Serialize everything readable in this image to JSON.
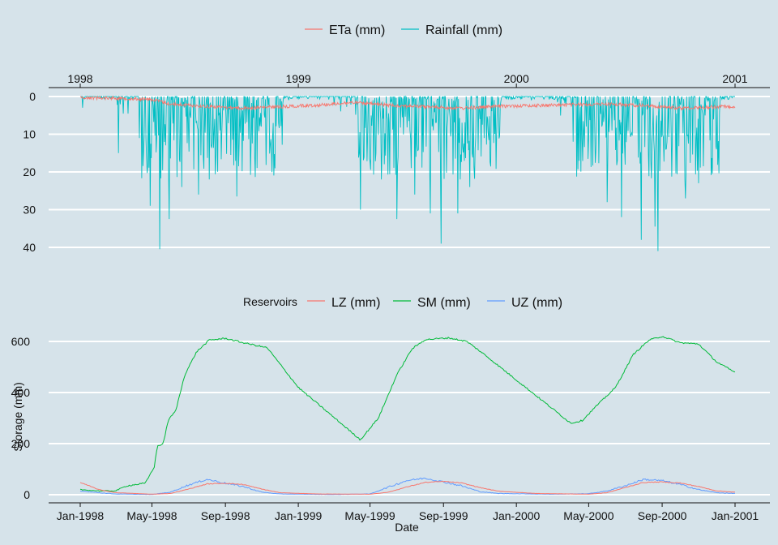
{
  "chart_data": [
    {
      "type": "line",
      "title": "",
      "legend": {
        "position": "top",
        "title": "",
        "entries": [
          {
            "name": "ETa (mm)",
            "color": "#f8766d"
          },
          {
            "name": "Rainfall (mm)",
            "color": "#00bfc4"
          }
        ]
      },
      "x_axis": {
        "position": "top",
        "tick_labels": [
          "1998",
          "1999",
          "2000",
          "2001"
        ],
        "range": [
          "1998-01-01",
          "2001-01-01"
        ]
      },
      "y_axis": {
        "reversed": true,
        "ticks": [
          0,
          10,
          20,
          30,
          40
        ],
        "ylim": [
          0,
          42
        ]
      },
      "grid": true,
      "series": [
        {
          "name": "ETa (mm)",
          "color": "#f8766d",
          "approx_envelope": [
            {
              "x": "1998-01-01",
              "y": 0.3
            },
            {
              "x": "1998-03-01",
              "y": 0.4
            },
            {
              "x": "1998-05-01",
              "y": 0.8
            },
            {
              "x": "1998-06-01",
              "y": 2.0
            },
            {
              "x": "1998-08-01",
              "y": 2.6
            },
            {
              "x": "1998-10-01",
              "y": 3.1
            },
            {
              "x": "1998-12-01",
              "y": 2.7
            },
            {
              "x": "1999-02-01",
              "y": 2.3
            },
            {
              "x": "1999-04-01",
              "y": 1.6
            },
            {
              "x": "1999-06-01",
              "y": 2.3
            },
            {
              "x": "1999-08-01",
              "y": 2.7
            },
            {
              "x": "1999-10-01",
              "y": 3.1
            },
            {
              "x": "1999-12-01",
              "y": 2.6
            },
            {
              "x": "2000-03-01",
              "y": 2.3
            },
            {
              "x": "2000-06-01",
              "y": 2.0
            },
            {
              "x": "2000-08-01",
              "y": 2.4
            },
            {
              "x": "2000-10-01",
              "y": 3.1
            },
            {
              "x": "2000-12-31",
              "y": 2.6
            }
          ]
        },
        {
          "name": "Rainfall (mm)",
          "color": "#00bfc4",
          "notable_events": [
            {
              "x": "1998-01-05",
              "y": 3
            },
            {
              "x": "1998-03-06",
              "y": 15
            },
            {
              "x": "1998-04-10",
              "y": 11
            },
            {
              "x": "1998-04-28",
              "y": 29
            },
            {
              "x": "1998-05-14",
              "y": 40.5
            },
            {
              "x": "1998-05-30",
              "y": 32.5
            },
            {
              "x": "1998-06-20",
              "y": 24
            },
            {
              "x": "1998-07-18",
              "y": 26
            },
            {
              "x": "1998-08-05",
              "y": 22
            },
            {
              "x": "1998-09-20",
              "y": 26.5
            },
            {
              "x": "1998-10-20",
              "y": 16
            },
            {
              "x": "1998-11-20",
              "y": 7
            },
            {
              "x": "1999-04-15",
              "y": 30
            },
            {
              "x": "1999-05-20",
              "y": 22
            },
            {
              "x": "1999-06-15",
              "y": 32.5
            },
            {
              "x": "1999-07-15",
              "y": 26
            },
            {
              "x": "1999-08-10",
              "y": 31
            },
            {
              "x": "1999-08-28",
              "y": 39
            },
            {
              "x": "1999-09-25",
              "y": 31
            },
            {
              "x": "1999-10-15",
              "y": 24
            },
            {
              "x": "1999-11-15",
              "y": 10
            },
            {
              "x": "2000-04-05",
              "y": 12
            },
            {
              "x": "2000-06-01",
              "y": 28
            },
            {
              "x": "2000-06-25",
              "y": 32
            },
            {
              "x": "2000-07-28",
              "y": 38
            },
            {
              "x": "2000-08-20",
              "y": 34.5
            },
            {
              "x": "2000-08-25",
              "y": 41
            },
            {
              "x": "2000-10-10",
              "y": 27
            },
            {
              "x": "2000-11-01",
              "y": 23
            },
            {
              "x": "2000-12-01",
              "y": 14
            }
          ]
        }
      ]
    },
    {
      "type": "line",
      "title": "",
      "xlabel": "Date",
      "ylabel": "Storage (mm)",
      "legend": {
        "position": "top",
        "title": "Reservoirs",
        "entries": [
          {
            "name": "LZ (mm)",
            "color": "#f8766d"
          },
          {
            "name": "SM (mm)",
            "color": "#00ba38"
          },
          {
            "name": "UZ (mm)",
            "color": "#619cff"
          }
        ]
      },
      "x_axis": {
        "tick_labels": [
          "Jan-1998",
          "May-1998",
          "Sep-1998",
          "Jan-1999",
          "May-1999",
          "Sep-1999",
          "Jan-2000",
          "May-2000",
          "Sep-2000",
          "Jan-2001"
        ],
        "range": [
          "1997-12-01",
          "2001-02-01"
        ]
      },
      "y_axis": {
        "ticks": [
          0,
          200,
          400,
          600
        ],
        "ylim": [
          -30,
          650
        ]
      },
      "grid": true,
      "series": [
        {
          "name": "SM (mm)",
          "color": "#00ba38",
          "points": [
            {
              "x": "1998-01-01",
              "y": 20
            },
            {
              "x": "1998-02-01",
              "y": 15
            },
            {
              "x": "1998-03-01",
              "y": 15
            },
            {
              "x": "1998-03-20",
              "y": 35
            },
            {
              "x": "1998-04-20",
              "y": 45
            },
            {
              "x": "1998-05-05",
              "y": 110
            },
            {
              "x": "1998-05-10",
              "y": 190
            },
            {
              "x": "1998-05-20",
              "y": 200
            },
            {
              "x": "1998-05-28",
              "y": 290
            },
            {
              "x": "1998-06-10",
              "y": 330
            },
            {
              "x": "1998-06-25",
              "y": 470
            },
            {
              "x": "1998-07-15",
              "y": 560
            },
            {
              "x": "1998-08-05",
              "y": 605
            },
            {
              "x": "1998-09-01",
              "y": 612
            },
            {
              "x": "1998-10-01",
              "y": 595
            },
            {
              "x": "1998-11-10",
              "y": 575
            },
            {
              "x": "1999-01-01",
              "y": 420
            },
            {
              "x": "1999-04-15",
              "y": 215
            },
            {
              "x": "1999-05-15",
              "y": 300
            },
            {
              "x": "1999-06-15",
              "y": 470
            },
            {
              "x": "1999-07-10",
              "y": 570
            },
            {
              "x": "1999-08-01",
              "y": 607
            },
            {
              "x": "1999-09-10",
              "y": 614
            },
            {
              "x": "1999-10-10",
              "y": 600
            },
            {
              "x": "1999-11-05",
              "y": 555
            },
            {
              "x": "2000-04-01",
              "y": 280
            },
            {
              "x": "2000-04-20",
              "y": 290
            },
            {
              "x": "2000-05-15",
              "y": 350
            },
            {
              "x": "2000-06-15",
              "y": 420
            },
            {
              "x": "2000-07-15",
              "y": 550
            },
            {
              "x": "2000-08-10",
              "y": 605
            },
            {
              "x": "2000-09-01",
              "y": 620
            },
            {
              "x": "2000-10-01",
              "y": 595
            },
            {
              "x": "2000-11-01",
              "y": 590
            },
            {
              "x": "2000-12-01",
              "y": 520
            },
            {
              "x": "2000-12-31",
              "y": 480
            }
          ]
        },
        {
          "name": "LZ (mm)",
          "color": "#f8766d",
          "points": [
            {
              "x": "1998-01-01",
              "y": 48
            },
            {
              "x": "1998-02-01",
              "y": 20
            },
            {
              "x": "1998-03-01",
              "y": 8
            },
            {
              "x": "1998-05-01",
              "y": 2
            },
            {
              "x": "1998-06-01",
              "y": 5
            },
            {
              "x": "1998-07-01",
              "y": 22
            },
            {
              "x": "1998-08-01",
              "y": 42
            },
            {
              "x": "1998-09-01",
              "y": 45
            },
            {
              "x": "1998-10-01",
              "y": 40
            },
            {
              "x": "1998-11-01",
              "y": 22
            },
            {
              "x": "1998-12-01",
              "y": 8
            },
            {
              "x": "1999-02-01",
              "y": 3
            },
            {
              "x": "1999-05-01",
              "y": 2
            },
            {
              "x": "1999-06-01",
              "y": 10
            },
            {
              "x": "1999-07-01",
              "y": 30
            },
            {
              "x": "1999-08-01",
              "y": 48
            },
            {
              "x": "1999-09-01",
              "y": 52
            },
            {
              "x": "1999-10-01",
              "y": 46
            },
            {
              "x": "1999-11-01",
              "y": 28
            },
            {
              "x": "1999-12-01",
              "y": 14
            },
            {
              "x": "2000-02-01",
              "y": 5
            },
            {
              "x": "2000-05-01",
              "y": 2
            },
            {
              "x": "2000-06-01",
              "y": 8
            },
            {
              "x": "2000-07-01",
              "y": 28
            },
            {
              "x": "2000-08-01",
              "y": 48
            },
            {
              "x": "2000-09-01",
              "y": 50
            },
            {
              "x": "2000-10-01",
              "y": 46
            },
            {
              "x": "2000-11-01",
              "y": 32
            },
            {
              "x": "2000-12-01",
              "y": 15
            },
            {
              "x": "2000-12-31",
              "y": 10
            }
          ]
        },
        {
          "name": "UZ (mm)",
          "color": "#619cff",
          "points": [
            {
              "x": "1998-01-01",
              "y": 15
            },
            {
              "x": "1998-02-01",
              "y": 8
            },
            {
              "x": "1998-03-01",
              "y": 3
            },
            {
              "x": "1998-05-01",
              "y": 1
            },
            {
              "x": "1998-06-01",
              "y": 10
            },
            {
              "x": "1998-07-01",
              "y": 38
            },
            {
              "x": "1998-08-01",
              "y": 60
            },
            {
              "x": "1998-09-01",
              "y": 45
            },
            {
              "x": "1998-10-01",
              "y": 32
            },
            {
              "x": "1998-11-01",
              "y": 10
            },
            {
              "x": "1998-12-01",
              "y": 3
            },
            {
              "x": "1999-03-01",
              "y": 1
            },
            {
              "x": "1999-05-01",
              "y": 3
            },
            {
              "x": "1999-06-01",
              "y": 30
            },
            {
              "x": "1999-07-01",
              "y": 55
            },
            {
              "x": "1999-08-01",
              "y": 65
            },
            {
              "x": "1999-09-01",
              "y": 50
            },
            {
              "x": "1999-10-01",
              "y": 35
            },
            {
              "x": "1999-11-01",
              "y": 12
            },
            {
              "x": "1999-12-01",
              "y": 5
            },
            {
              "x": "2000-03-01",
              "y": 2
            },
            {
              "x": "2000-05-01",
              "y": 4
            },
            {
              "x": "2000-06-01",
              "y": 15
            },
            {
              "x": "2000-07-01",
              "y": 35
            },
            {
              "x": "2000-08-01",
              "y": 60
            },
            {
              "x": "2000-09-01",
              "y": 55
            },
            {
              "x": "2000-10-01",
              "y": 40
            },
            {
              "x": "2000-11-01",
              "y": 20
            },
            {
              "x": "2000-12-01",
              "y": 8
            },
            {
              "x": "2000-12-31",
              "y": 5
            }
          ]
        }
      ]
    }
  ]
}
